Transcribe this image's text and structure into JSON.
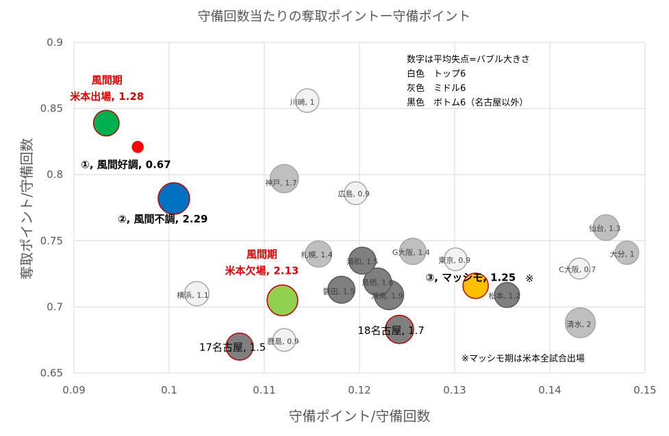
{
  "chart_data": {
    "type": "scatter",
    "title": "守備回数当たりの奪取ポイントー守備ポイント",
    "xlabel": "守備ポイント/守備回数",
    "ylabel": "奪取ポイント/守備回数",
    "xlim": [
      0.09,
      0.15
    ],
    "ylim": [
      0.65,
      0.9
    ],
    "xticks": [
      "0.09",
      "0.1",
      "0.11",
      "0.12",
      "0.13",
      "0.14",
      "0.15"
    ],
    "yticks": [
      "0.65",
      "0.7",
      "0.75",
      "0.8",
      "0.85",
      "0.9"
    ],
    "grid": true,
    "legend_note": [
      "数字は平均失点=バブル大きさ",
      "白色　トップ6",
      "灰色　ミドル6",
      "黒色　ボトム6（名古屋以外）"
    ],
    "footnote": "※マッシモ期は米本全試合出場",
    "colors": {
      "top": "#bfbfbf",
      "middle": "#bfbfbf",
      "bottom": "#7f7f7f",
      "dark_bottom": "#737373",
      "white_top": "#f2f2f2",
      "green_dark": "#00b050",
      "red": "#ff0000",
      "blue": "#0070c0",
      "light_green": "#92d050",
      "orange": "#ffc000"
    },
    "points": [
      {
        "label": "川崎, 1",
        "x": 0.1145,
        "y": 0.856,
        "size": 1.0,
        "fill": "#f2f2f2",
        "stroke": "#a6a6a6",
        "style": "small",
        "lx": 0.1132,
        "ly": 0.856
      },
      {
        "label": "神戸, 1.7",
        "x": 0.1121,
        "y": 0.797,
        "size": 1.7,
        "fill": "#bfbfbf",
        "stroke": "#a6a6a6",
        "style": "small",
        "lx": 0.1087,
        "ly": 0.797
      },
      {
        "label": "広島, 0.9",
        "x": 0.1196,
        "y": 0.786,
        "size": 0.9,
        "fill": "#f2f2f2",
        "stroke": "#a6a6a6",
        "style": "small",
        "lx": 0.1168,
        "ly": 0.786
      },
      {
        "label": "仙台, 1.3",
        "x": 0.1459,
        "y": 0.76,
        "size": 1.3,
        "fill": "#bfbfbf",
        "stroke": "#a6a6a6",
        "style": "small",
        "lx": 0.1448,
        "ly": 0.76
      },
      {
        "label": "札幌, 1.4",
        "x": 0.1157,
        "y": 0.74,
        "size": 1.4,
        "fill": "#bfbfbf",
        "stroke": "#a6a6a6",
        "style": "small",
        "lx": 0.1137,
        "ly": 0.74
      },
      {
        "label": "浦和, 1.5",
        "x": 0.1203,
        "y": 0.735,
        "size": 1.5,
        "fill": "#7f7f7f",
        "stroke": "#595959",
        "style": "small",
        "lx": 0.1203,
        "ly": 0.735
      },
      {
        "label": "G大阪, 1.4",
        "x": 0.1256,
        "y": 0.742,
        "size": 1.4,
        "fill": "#bfbfbf",
        "stroke": "#a6a6a6",
        "style": "small",
        "lx": 0.1244,
        "ly": 0.742
      },
      {
        "label": "東京, 0.9",
        "x": 0.1301,
        "y": 0.736,
        "size": 0.9,
        "fill": "#f2f2f2",
        "stroke": "#a6a6a6",
        "style": "small",
        "lx": 0.1284,
        "ly": 0.736
      },
      {
        "label": "大分, 1",
        "x": 0.1481,
        "y": 0.741,
        "size": 1.0,
        "fill": "#bfbfbf",
        "stroke": "#a6a6a6",
        "style": "small",
        "lx": 0.1484,
        "ly": 0.741
      },
      {
        "label": "C大阪, 0.7",
        "x": 0.1431,
        "y": 0.729,
        "size": 0.7,
        "fill": "#f2f2f2",
        "stroke": "#a6a6a6",
        "style": "small",
        "lx": 0.1429,
        "ly": 0.729
      },
      {
        "label": "鳥栖, 1.6",
        "x": 0.1219,
        "y": 0.719,
        "size": 1.6,
        "fill": "#7f7f7f",
        "stroke": "#595959",
        "style": "small",
        "lx": 0.1219,
        "ly": 0.719
      },
      {
        "label": "磐田, 1.5",
        "x": 0.1181,
        "y": 0.713,
        "size": 1.5,
        "fill": "#7f7f7f",
        "stroke": "#595959",
        "style": "small",
        "lx": 0.1168,
        "ly": 0.713
      },
      {
        "label": "湘南, 1.9",
        "x": 0.1231,
        "y": 0.709,
        "size": 1.9,
        "fill": "#7f7f7f",
        "stroke": "#595959",
        "style": "small",
        "lx": 0.1231,
        "ly": 0.709
      },
      {
        "label": "松本, 1.2",
        "x": 0.1355,
        "y": 0.709,
        "size": 1.2,
        "fill": "#7f7f7f",
        "stroke": "#595959",
        "style": "small",
        "lx": 0.1345,
        "ly": 0.709
      },
      {
        "label": "横浜, 1.1",
        "x": 0.1029,
        "y": 0.71,
        "size": 1.1,
        "fill": "#f2f2f2",
        "stroke": "#a6a6a6",
        "style": "small",
        "lx": 0.1032,
        "ly": 0.71
      },
      {
        "label": "清水, 2",
        "x": 0.1432,
        "y": 0.688,
        "size": 2.0,
        "fill": "#bfbfbf",
        "stroke": "#a6a6a6",
        "style": "small",
        "lx": 0.1432,
        "ly": 0.688
      },
      {
        "label": "鹿島, 0.9",
        "x": 0.1121,
        "y": 0.675,
        "size": 0.9,
        "fill": "#f2f2f2",
        "stroke": "#a6a6a6",
        "style": "small",
        "lx": 0.1121,
        "ly": 0.675
      },
      {
        "label": "17名古屋, 1.5",
        "x": 0.1074,
        "y": 0.67,
        "size": 1.5,
        "fill": "#7f7f7f",
        "stroke": "#c00000",
        "style": "big",
        "lx": 0.1074,
        "ly": 0.67
      },
      {
        "label": "18名古屋, 1.7",
        "x": 0.1242,
        "y": 0.683,
        "size": 1.7,
        "fill": "#7f7f7f",
        "stroke": "#c00000",
        "style": "big",
        "lx": 0.1242,
        "ly": 0.683
      },
      {
        "label": "①, 風間好調, 0.67",
        "x": 0.0967,
        "y": 0.821,
        "size": 0.67,
        "fill": "#ff0000",
        "stroke": "#ff0000",
        "style": "bigbold",
        "lx": 0.0967,
        "ly": 0.821
      },
      {
        "label": "②, 風間不調, 2.29",
        "x": 0.1005,
        "y": 0.782,
        "size": 2.29,
        "fill": "#0070c0",
        "stroke": "#c00000",
        "style": "bigbold",
        "lx": 0.1005,
        "ly": 0.782
      },
      {
        "label": "③, マッシモ, 1.25",
        "x": 0.1322,
        "y": 0.716,
        "size": 1.25,
        "fill": "#ffc000",
        "stroke": "#c00000",
        "style": "bigbold",
        "lx": 0.1322,
        "ly": 0.716
      },
      {
        "label": "風間期 米本出場, 1.28",
        "x": 0.0934,
        "y": 0.839,
        "size": 1.28,
        "fill": "#00b050",
        "stroke": "#c00000",
        "style": "red",
        "lx": 0.0934,
        "ly": 0.839
      },
      {
        "label": "風間期 米本欠場, 2.13",
        "x": 0.1119,
        "y": 0.705,
        "size": 2.13,
        "fill": "#92d050",
        "stroke": "#c00000",
        "style": "red",
        "lx": 0.1119,
        "ly": 0.705
      }
    ],
    "extra_marks": [
      "※"
    ]
  }
}
